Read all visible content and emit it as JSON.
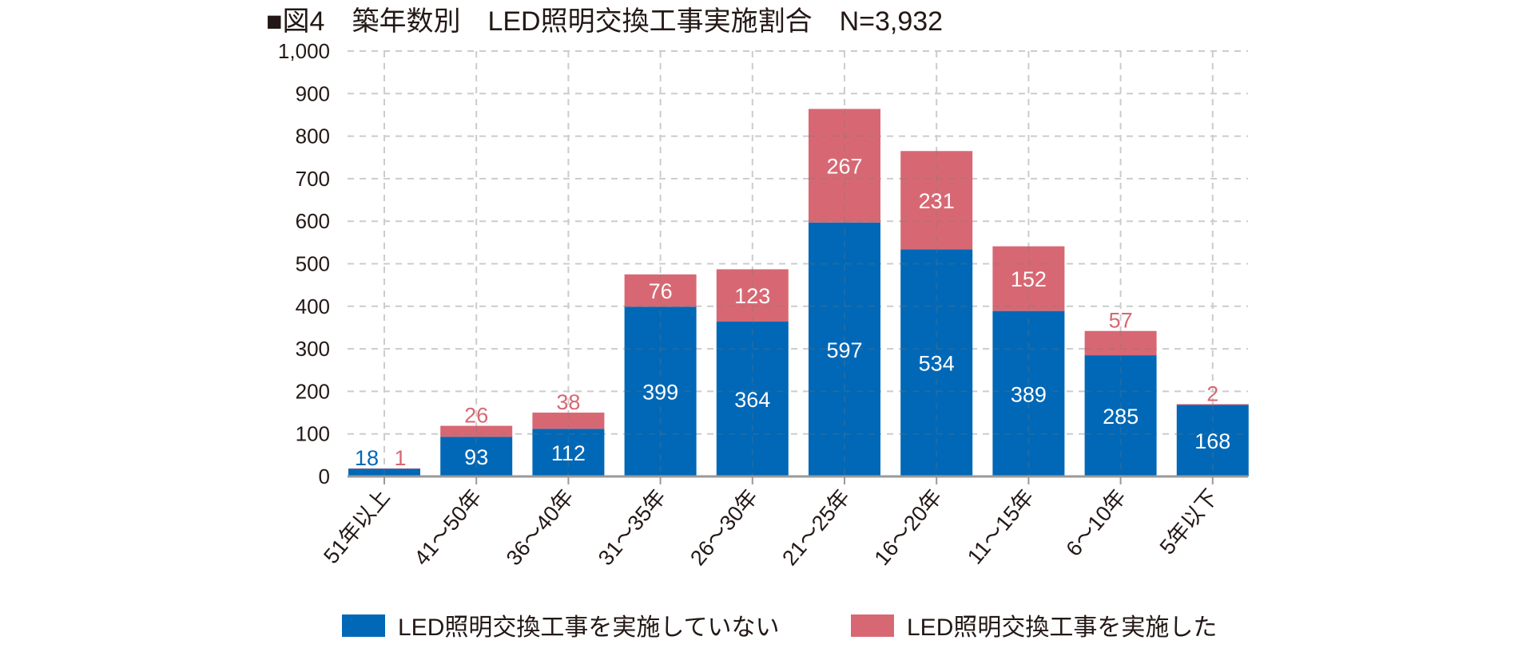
{
  "title": "■図4　築年数別　LED照明交換工事実施割合　N=3,932",
  "chart_data": {
    "type": "bar",
    "stacked": true,
    "title": "図4　築年数別　LED照明交換工事実施割合　N=3,932",
    "xlabel": "",
    "ylabel": "",
    "ylim": [
      0,
      1000
    ],
    "yticks": [
      0,
      100,
      200,
      300,
      400,
      500,
      600,
      700,
      800,
      900,
      1000
    ],
    "ytick_labels": [
      "0",
      "100",
      "200",
      "300",
      "400",
      "500",
      "600",
      "700",
      "800",
      "900",
      "1,000"
    ],
    "grid": true,
    "legend_position": "bottom",
    "categories": [
      "51年以上",
      "41~50年",
      "36~40年",
      "31~35年",
      "26~30年",
      "21~25年",
      "16~20年",
      "11~15年",
      "6~10年",
      "5年以下"
    ],
    "category_labels": [
      "51年以上",
      "41〜50年",
      "36〜40年",
      "31〜35年",
      "26〜30年",
      "21〜25年",
      "16〜20年",
      "11〜15年",
      "6〜10年",
      "5年以下"
    ],
    "series": [
      {
        "name": "LED照明交換工事を実施していない",
        "color": "#0068b7",
        "values": [
          18,
          93,
          112,
          399,
          364,
          597,
          534,
          389,
          285,
          168
        ]
      },
      {
        "name": "LED照明交換工事を実施した",
        "color": "#d76873",
        "values": [
          1,
          26,
          38,
          76,
          123,
          267,
          231,
          152,
          57,
          2
        ]
      }
    ]
  },
  "colors": {
    "grid": "#cccccc",
    "axis": "#999999",
    "text": "#231815",
    "label_inside": "#ffffff"
  }
}
